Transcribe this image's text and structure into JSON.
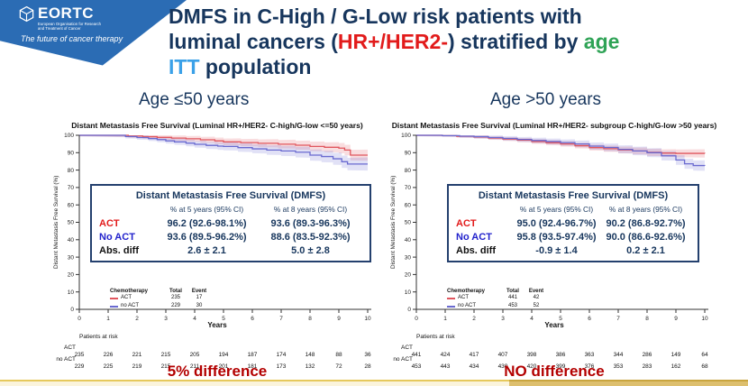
{
  "banner": {
    "brand": "EORTC",
    "brand_sub1": "European Organisation for Research",
    "brand_sub2": "and Treatment of Cancer",
    "tagline": "The future of cancer therapy"
  },
  "title": {
    "line1": "DMFS in C-High / G-Low risk patients with",
    "line2_pre": "luminal cancers (",
    "line2_red": "HR+/HER2-",
    "line2_mid": ") stratified by ",
    "line2_green": "age",
    "line3_cyan": "ITT",
    "line3_rest": " population"
  },
  "colors": {
    "banner_blue": "#2B6CB4",
    "title_navy": "#17365D",
    "accent_red": "#E21B1B",
    "accent_green": "#2FA356",
    "accent_cyan": "#3BA1E8",
    "caption_red": "#B30000",
    "act_curve": "#E0565E",
    "noact_curve": "#6A6AD0"
  },
  "chart_data": [
    {
      "type": "line",
      "header": "Age ≤50 years",
      "caption": "5% difference",
      "title": "Distant Metastasis Free Survival (Luminal HR+/HER2- C-high/G-low <=50 years)",
      "ylabel": "Distant Metastasis Free Survival (%)",
      "xlabel": "Years",
      "xlim": [
        0,
        10
      ],
      "ylim": [
        0,
        100
      ],
      "xticks": [
        0,
        1,
        2,
        3,
        4,
        5,
        6,
        7,
        8,
        9,
        10
      ],
      "yticks": [
        0,
        10,
        20,
        30,
        40,
        50,
        60,
        70,
        80,
        90,
        100
      ],
      "legend_header": {
        "chemo": "Chemotherapy",
        "total": "Total",
        "event": "Event"
      },
      "series": [
        {
          "name": "ACT",
          "total": "235",
          "events": "17",
          "color": "#E0565E",
          "band_color": "rgba(224,86,94,0.20)",
          "band_halfwidth": [
            0.6,
            3.2
          ],
          "steps_pct": [
            [
              0,
              100
            ],
            [
              1.5,
              100
            ],
            [
              1.7,
              99.6
            ],
            [
              2.2,
              99.2
            ],
            [
              2.7,
              98.8
            ],
            [
              3.2,
              98.4
            ],
            [
              3.7,
              98.0
            ],
            [
              4.2,
              97.4
            ],
            [
              4.7,
              96.8
            ],
            [
              5.0,
              96.2
            ],
            [
              5.6,
              95.8
            ],
            [
              6.2,
              95.4
            ],
            [
              6.9,
              94.9
            ],
            [
              7.5,
              94.3
            ],
            [
              8.0,
              93.6
            ],
            [
              8.5,
              93.1
            ],
            [
              9.0,
              92.6
            ],
            [
              9.2,
              91.5
            ],
            [
              9.4,
              88.6
            ],
            [
              10,
              88.6
            ]
          ]
        },
        {
          "name": "no ACT",
          "total": "229",
          "events": "30",
          "color": "#6A6AD0",
          "band_color": "rgba(106,106,208,0.20)",
          "band_halfwidth": [
            0.6,
            3.8
          ],
          "steps_pct": [
            [
              0,
              100
            ],
            [
              1.3,
              100
            ],
            [
              1.6,
              99.3
            ],
            [
              2.0,
              98.7
            ],
            [
              2.4,
              98.1
            ],
            [
              2.7,
              97.5
            ],
            [
              3.0,
              96.8
            ],
            [
              3.3,
              96.2
            ],
            [
              3.7,
              95.5
            ],
            [
              4.0,
              94.8
            ],
            [
              4.4,
              94.2
            ],
            [
              4.8,
              93.8
            ],
            [
              5.0,
              93.6
            ],
            [
              5.5,
              92.9
            ],
            [
              6.0,
              92.2
            ],
            [
              6.5,
              91.5
            ],
            [
              7.0,
              91.0
            ],
            [
              7.5,
              90.3
            ],
            [
              8.0,
              88.6
            ],
            [
              8.4,
              87.8
            ],
            [
              8.8,
              86.5
            ],
            [
              9.1,
              84.8
            ],
            [
              9.3,
              83.5
            ],
            [
              10,
              83.5
            ]
          ]
        }
      ],
      "stats": {
        "title": "Distant Metastasis Free Survival (DMFS)",
        "col5": "% at 5 years (95% CI)",
        "col8": "% at 8 years (95% CI)",
        "rows": [
          {
            "label": "ACT",
            "at5": "96.2 (92.6-98.1%)",
            "at8": "93.6 (89.3-96.3%)"
          },
          {
            "label": "No ACT",
            "at5": "93.6 (89.5-96.2%)",
            "at8": "88.6 (83.5-92.3%)"
          },
          {
            "label": "Abs. diff",
            "at5": "2.6 ± 2.1",
            "at8": "5.0 ± 2.8"
          }
        ]
      },
      "risk": {
        "label": "Patients at risk",
        "rows": [
          {
            "name": "ACT",
            "values": [
              "235",
              "226",
              "221",
              "215",
              "205",
              "194",
              "187",
              "174",
              "148",
              "88",
              "36"
            ]
          },
          {
            "name": "no ACT",
            "values": [
              "229",
              "225",
              "219",
              "215",
              "211",
              "201",
              "181",
              "173",
              "132",
              "72",
              "28"
            ]
          }
        ]
      }
    },
    {
      "type": "line",
      "header": "Age >50 years",
      "caption": "NO difference",
      "title": "Distant Metastasis Free Survival (Luminal HR+/HER2- subgroup C-high/G-low >50 years)",
      "ylabel": "Distant Metastasis Free Survival (%)",
      "xlabel": "Years",
      "xlim": [
        0,
        10
      ],
      "ylim": [
        0,
        100
      ],
      "xticks": [
        0,
        1,
        2,
        3,
        4,
        5,
        6,
        7,
        8,
        9,
        10
      ],
      "yticks": [
        0,
        10,
        20,
        30,
        40,
        50,
        60,
        70,
        80,
        90,
        100
      ],
      "legend_header": {
        "chemo": "Chemotherapy",
        "total": "Total",
        "event": "Event"
      },
      "series": [
        {
          "name": "ACT",
          "total": "441",
          "events": "42",
          "color": "#E0565E",
          "band_color": "rgba(224,86,94,0.20)",
          "band_halfwidth": [
            0.5,
            2.4
          ],
          "steps_pct": [
            [
              0,
              100
            ],
            [
              0.9,
              99.8
            ],
            [
              1.4,
              99.4
            ],
            [
              2.0,
              99.0
            ],
            [
              2.5,
              98.4
            ],
            [
              3.0,
              97.8
            ],
            [
              3.5,
              97.2
            ],
            [
              4.0,
              96.4
            ],
            [
              4.5,
              95.7
            ],
            [
              5.0,
              95.0
            ],
            [
              5.5,
              94.0
            ],
            [
              6.0,
              92.9
            ],
            [
              6.5,
              92.3
            ],
            [
              7.0,
              91.6
            ],
            [
              7.5,
              91.0
            ],
            [
              8.0,
              90.2
            ],
            [
              8.5,
              89.8
            ],
            [
              9.0,
              89.6
            ],
            [
              10,
              89.5
            ]
          ]
        },
        {
          "name": "no ACT",
          "total": "453",
          "events": "52",
          "color": "#6A6AD0",
          "band_color": "rgba(106,106,208,0.20)",
          "band_halfwidth": [
            0.5,
            3.0
          ],
          "steps_pct": [
            [
              0,
              100
            ],
            [
              0.9,
              99.8
            ],
            [
              1.5,
              99.5
            ],
            [
              2.0,
              99.2
            ],
            [
              2.5,
              98.7
            ],
            [
              3.0,
              98.2
            ],
            [
              3.5,
              97.6
            ],
            [
              4.0,
              97.0
            ],
            [
              4.5,
              96.4
            ],
            [
              5.0,
              95.8
            ],
            [
              5.5,
              95.0
            ],
            [
              6.0,
              93.8
            ],
            [
              6.5,
              93.0
            ],
            [
              7.0,
              91.9
            ],
            [
              7.5,
              91.0
            ],
            [
              8.0,
              90.0
            ],
            [
              8.5,
              88.2
            ],
            [
              9.0,
              85.8
            ],
            [
              9.3,
              83.6
            ],
            [
              9.6,
              82.6
            ],
            [
              10,
              82.5
            ]
          ]
        }
      ],
      "stats": {
        "title": "Distant Metastasis Free Survival (DMFS)",
        "col5": "% at 5 years (95% CI)",
        "col8": "% at 8 years (95% CI)",
        "rows": [
          {
            "label": "ACT",
            "at5": "95.0 (92.4-96.7%)",
            "at8": "90.2 (86.8-92.7%)"
          },
          {
            "label": "No ACT",
            "at5": "95.8 (93.5-97.4%)",
            "at8": "90.0 (86.6-92.6%)"
          },
          {
            "label": "Abs. diff",
            "at5": "-0.9 ± 1.4",
            "at8": "0.2 ± 2.1"
          }
        ]
      },
      "risk": {
        "label": "Patients at risk",
        "rows": [
          {
            "name": "ACT",
            "values": [
              "441",
              "424",
              "417",
              "407",
              "398",
              "386",
              "363",
              "344",
              "286",
              "149",
              "64"
            ]
          },
          {
            "name": "no ACT",
            "values": [
              "453",
              "443",
              "434",
              "430",
              "420",
              "399",
              "376",
              "353",
              "283",
              "162",
              "68"
            ]
          }
        ]
      }
    }
  ]
}
